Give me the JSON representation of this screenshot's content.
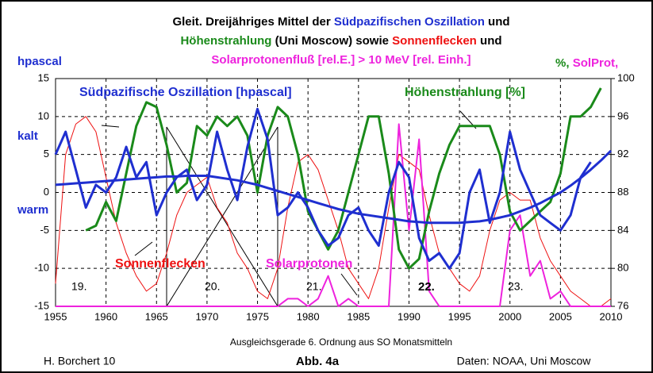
{
  "chart_data": {
    "type": "line",
    "title_lines": [
      [
        {
          "text": "Gleit. Dreijähriges Mittel der ",
          "color": "#000000"
        },
        {
          "text": "Südpazifischen Oszillation",
          "color": "#1f2fd0"
        },
        {
          "text": " und",
          "color": "#000000"
        }
      ],
      [
        {
          "text": "Höhenstrahlung",
          "color": "#1a8a1a"
        },
        {
          "text": " (Uni Moscow) sowie ",
          "color": "#000000"
        },
        {
          "text": "Sonnenflecken",
          "color": "#ee1111"
        },
        {
          "text": " und",
          "color": "#000000"
        }
      ],
      [
        {
          "text": "Solarprotonenfluß [rel.E.] > 10 MeV [rel. Einh.]",
          "color": "#ee22dd"
        }
      ]
    ],
    "y_label": "hpascal",
    "y2_label": [
      {
        "text": "%, ",
        "color": "#1a8a1a"
      },
      {
        "text": "SolProt,",
        "color": "#ee22dd"
      }
    ],
    "annotations": [
      {
        "text": "kalt",
        "color": "#1f2fd0"
      },
      {
        "text": "warm",
        "color": "#1f2fd0"
      },
      {
        "text": "19.",
        "color": "#000000"
      },
      {
        "text": "20.",
        "color": "#000000"
      },
      {
        "text": "21.",
        "color": "#000000"
      },
      {
        "text": "22.",
        "color": "#000000"
      },
      {
        "text": "23.",
        "color": "#000000"
      },
      {
        "text": "H. Borchert 10",
        "color": "#000000"
      },
      {
        "text": "Abb. 4a",
        "color": "#000000"
      },
      {
        "text": "Daten: NOAA, Uni Moscow",
        "color": "#000000"
      }
    ],
    "x": [
      1955,
      1956,
      1957,
      1958,
      1959,
      1960,
      1961,
      1962,
      1963,
      1964,
      1965,
      1966,
      1967,
      1968,
      1969,
      1970,
      1971,
      1972,
      1973,
      1974,
      1975,
      1976,
      1977,
      1978,
      1979,
      1980,
      1981,
      1982,
      1983,
      1984,
      1985,
      1986,
      1987,
      1988,
      1989,
      1990,
      1991,
      1992,
      1993,
      1994,
      1995,
      1996,
      1997,
      1998,
      1999,
      2000,
      2001,
      2002,
      2003,
      2004,
      2005,
      2006,
      2007,
      2008,
      2009,
      2010
    ],
    "series": [
      {
        "name": "Sonnenflecken",
        "color": "#ee1111",
        "width": 1,
        "axis": "y",
        "values": [
          -12,
          5,
          9,
          10,
          8,
          2,
          -4,
          -8,
          -11,
          -13,
          -12,
          -8,
          -3,
          0,
          1,
          2,
          -2,
          -4,
          -8,
          -10,
          -13,
          -14,
          -10,
          -2,
          4,
          5,
          3,
          -1,
          -5,
          -10,
          -12,
          -14,
          -10,
          -2,
          5,
          4,
          3,
          -3,
          -8,
          -10,
          -12,
          -13,
          -11,
          -5,
          -1,
          0,
          -1,
          -1,
          -6,
          -9,
          -11,
          -13,
          -14,
          -15,
          -15,
          -14
        ]
      },
      {
        "name": "Solarprotonen",
        "color": "#ee22dd",
        "width": 2,
        "axis": "y",
        "values": [
          -15,
          -15,
          -15,
          -15,
          -15,
          -15,
          -15,
          -15,
          -15,
          -15,
          -15,
          -15,
          -15,
          -15,
          -15,
          -15,
          -15,
          -15,
          -15,
          -15,
          -15,
          -15,
          -15,
          -14,
          -14,
          -15,
          -14,
          -11,
          -15,
          -14,
          -15,
          -15,
          -15,
          -15,
          9,
          -5,
          7,
          -13,
          -15,
          -15,
          -15,
          -15,
          -15,
          -15,
          -15,
          -5,
          -3,
          -11,
          -9,
          -14,
          -13,
          -15,
          -15,
          -15,
          -15,
          -15
        ]
      },
      {
        "name": "Höhenstrahlung [%]",
        "color": "#1a8a1a",
        "width": 3,
        "axis": "y2",
        "values": [
          null,
          null,
          null,
          84,
          84.5,
          87,
          85,
          90,
          95,
          97.5,
          97,
          93,
          88,
          89,
          95,
          94,
          96,
          95,
          96,
          94,
          88,
          94,
          97,
          96,
          92,
          86,
          84,
          82,
          84,
          88,
          92,
          96,
          96,
          90,
          82,
          80,
          81,
          86,
          90,
          93,
          95,
          95,
          95,
          95,
          92,
          86,
          84,
          85,
          86,
          87,
          90,
          96,
          96,
          97,
          99,
          null
        ]
      },
      {
        "name": "Südpazifische Oszillation [hpascal]",
        "color": "#1f2fd0",
        "width": 3,
        "axis": "y",
        "values": [
          5,
          8,
          3,
          -2,
          1,
          0,
          2,
          6,
          2,
          4,
          -3,
          0,
          2,
          3,
          -1,
          1,
          8,
          3,
          -1,
          6,
          11,
          7,
          -3,
          -2,
          0,
          -2,
          -5,
          -7,
          -6,
          -3,
          -2,
          -5,
          -7,
          0,
          4,
          2,
          -6,
          -9,
          -8,
          -10,
          -8,
          0,
          3,
          -4,
          0,
          8,
          3,
          0,
          -3,
          -4,
          -5,
          -3,
          2,
          4,
          null,
          null
        ]
      },
      {
        "name": "Ausgleichsgerade 6. Ordnung aus SO Monatsmitteln",
        "color": "#1f2fd0",
        "width": 3,
        "axis": "y",
        "values": [
          1,
          1.1,
          1.2,
          1.3,
          1.4,
          1.5,
          1.6,
          1.7,
          1.8,
          1.9,
          2,
          2.1,
          2.1,
          2.2,
          2.2,
          2.2,
          2,
          1.8,
          1.6,
          1.3,
          1,
          0.6,
          0.2,
          -0.2,
          -0.6,
          -1,
          -1.4,
          -1.8,
          -2.2,
          -2.5,
          -2.8,
          -3,
          -3.2,
          -3.4,
          -3.6,
          -3.8,
          -3.9,
          -4,
          -4,
          -4,
          -4,
          -3.9,
          -3.8,
          -3.6,
          -3.3,
          -3,
          -2.5,
          -2,
          -1.4,
          -0.7,
          0,
          0.9,
          1.9,
          3,
          4.2,
          5.5
        ]
      }
    ],
    "xlim": [
      1955,
      2010
    ],
    "xticks": [
      1955,
      1960,
      1965,
      1970,
      1975,
      1980,
      1985,
      1990,
      1995,
      2000,
      2005,
      2010
    ],
    "ylim": [
      -15,
      15
    ],
    "yticks": [
      -15,
      -10,
      -5,
      0,
      5,
      10,
      15
    ],
    "y2lim": [
      76,
      100
    ],
    "y2ticks": [
      76,
      80,
      84,
      88,
      92,
      96,
      100
    ],
    "grid": true
  }
}
